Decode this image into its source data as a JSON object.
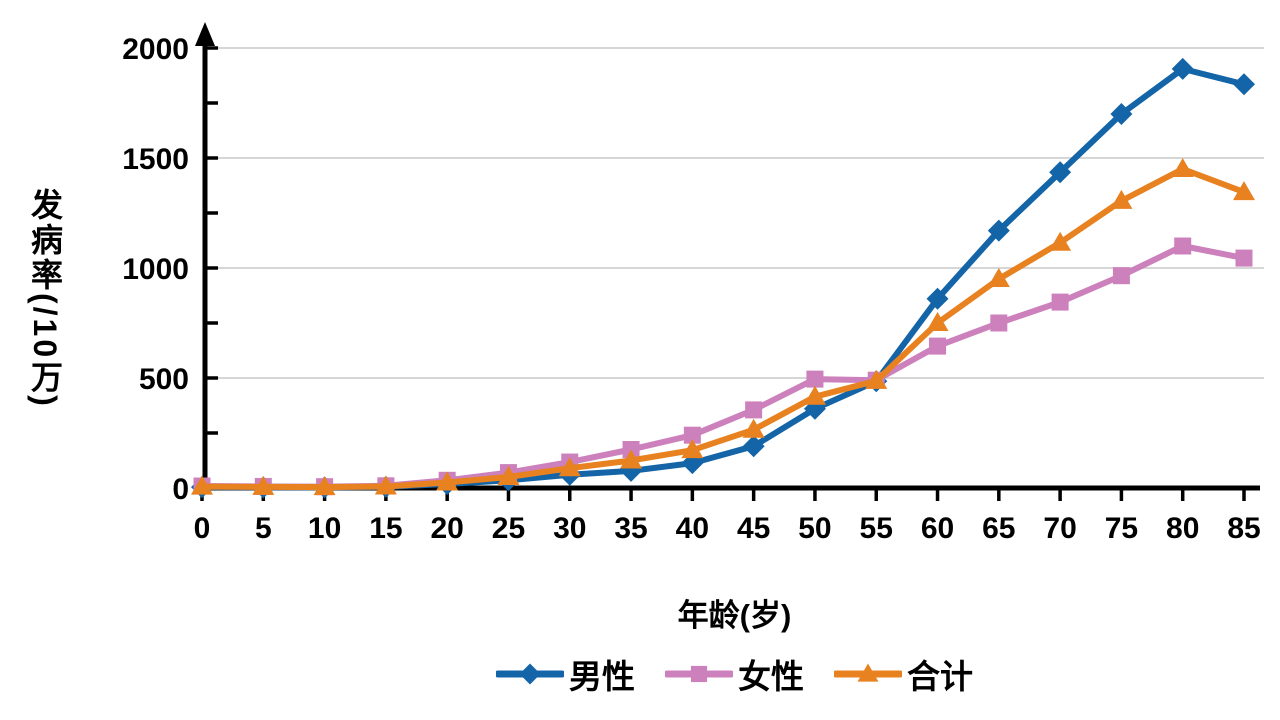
{
  "chart_data": {
    "type": "line",
    "title": "",
    "xlabel": "年龄(岁)",
    "ylabel": "发病率(/10万)",
    "categories": [
      0,
      5,
      10,
      15,
      20,
      25,
      30,
      35,
      40,
      45,
      50,
      55,
      60,
      65,
      70,
      75,
      80,
      85
    ],
    "series": [
      {
        "name": "男性",
        "marker": "diamond",
        "color": "#1464A8",
        "values": [
          4,
          3,
          3,
          5,
          18,
          35,
          60,
          78,
          113,
          190,
          360,
          485,
          860,
          1170,
          1435,
          1700,
          1905,
          1835
        ]
      },
      {
        "name": "女性",
        "marker": "square",
        "color": "#CC80BC",
        "values": [
          9,
          7,
          6,
          10,
          35,
          70,
          118,
          175,
          240,
          355,
          495,
          490,
          645,
          750,
          845,
          965,
          1100,
          1045
        ]
      },
      {
        "name": "合计",
        "marker": "triangle",
        "color": "#E8811F",
        "values": [
          6,
          5,
          4,
          7,
          25,
          50,
          90,
          125,
          172,
          265,
          415,
          487,
          750,
          950,
          1115,
          1305,
          1450,
          1345
        ]
      }
    ],
    "ylim": [
      0,
      2000
    ],
    "y_major_ticks": [
      0,
      500,
      1000,
      1500,
      2000
    ],
    "y_minor_step": 250,
    "grid": "major-horizontal",
    "legend_position": "bottom",
    "axis_arrow": "y-top",
    "colors": {
      "grid": "#D6D6D6",
      "axis": "#000000",
      "text": "#000000"
    }
  }
}
